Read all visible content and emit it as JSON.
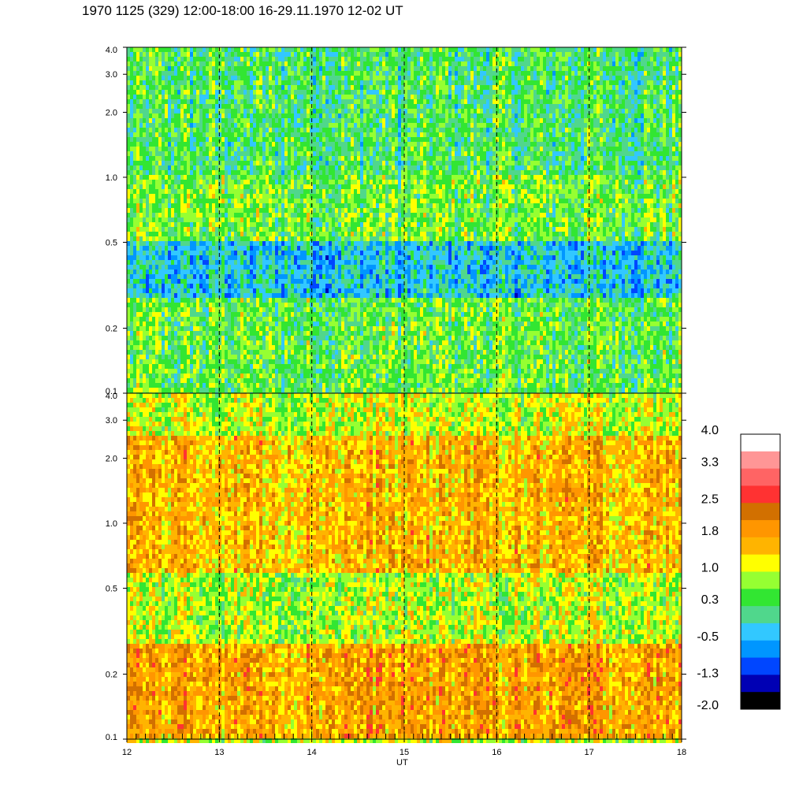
{
  "title": "1970 1125 (329) 12:00-18:00 16-29.11.1970  12-02 UT",
  "chart_data": [
    {
      "type": "heatmap",
      "panel": "upper",
      "x_unit": "UT",
      "x_ticks": [
        "12",
        "13",
        "14",
        "15",
        "16",
        "17",
        "18"
      ],
      "xlim": [
        12,
        18
      ],
      "ylim": [
        0.1,
        4.0
      ],
      "y_scale": "log",
      "y_ticks": [
        "4.0",
        "3.0",
        "2.0",
        "1.0",
        "0.5",
        "0.2",
        "0.1"
      ],
      "y_tick_values": [
        4.0,
        3.0,
        2.0,
        1.0,
        0.5,
        0.2,
        0.1
      ],
      "dominant_levels": [
        {
          "y_from": 1.0,
          "y_to": 4.0,
          "level": 0.3
        },
        {
          "y_from": 0.5,
          "y_to": 1.0,
          "level": 0.6
        },
        {
          "y_from": 0.28,
          "y_to": 0.5,
          "level": -0.3
        },
        {
          "y_from": 0.1,
          "y_to": 0.28,
          "level": 0.5
        }
      ],
      "dashed_vlines_ut": [
        13,
        14,
        15,
        16,
        17
      ]
    },
    {
      "type": "heatmap",
      "panel": "lower",
      "x_unit": "UT",
      "x_ticks": [
        "12",
        "13",
        "14",
        "15",
        "16",
        "17",
        "18"
      ],
      "xlim": [
        12,
        18
      ],
      "ylim": [
        0.1,
        4.0
      ],
      "y_scale": "log",
      "y_ticks": [
        "4.0",
        "3.0",
        "2.0",
        "1.0",
        "0.5",
        "0.2",
        "0.1"
      ],
      "y_tick_values": [
        4.0,
        3.0,
        2.0,
        1.0,
        0.5,
        0.2,
        0.1
      ],
      "dominant_levels": [
        {
          "y_from": 2.5,
          "y_to": 4.0,
          "level": 1.0
        },
        {
          "y_from": 0.6,
          "y_to": 2.5,
          "level": 1.6
        },
        {
          "y_from": 0.27,
          "y_to": 0.6,
          "level": 0.9
        },
        {
          "y_from": 0.1,
          "y_to": 0.27,
          "level": 1.8
        }
      ],
      "dashed_vlines_ut": [
        13,
        14,
        15,
        16,
        17
      ]
    }
  ],
  "xlabel": "UT",
  "colorbar": {
    "labels": [
      "4.0",
      "3.3",
      "2.5",
      "1.8",
      "1.0",
      "0.3",
      "-0.5",
      "-1.3",
      "-2.0"
    ],
    "label_values": [
      4.0,
      3.3,
      2.5,
      1.8,
      1.0,
      0.3,
      -0.5,
      -1.3,
      -2.0
    ],
    "range": [
      -2.0,
      4.0
    ],
    "colors_top_to_bottom": [
      "#ffffff",
      "#ff9696",
      "#ff6464",
      "#ff3232",
      "#d27000",
      "#ff9600",
      "#ffb400",
      "#ffff00",
      "#96ff32",
      "#32e632",
      "#50d78c",
      "#32c8ff",
      "#0096ff",
      "#0046ff",
      "#0000b4",
      "#000000"
    ]
  }
}
